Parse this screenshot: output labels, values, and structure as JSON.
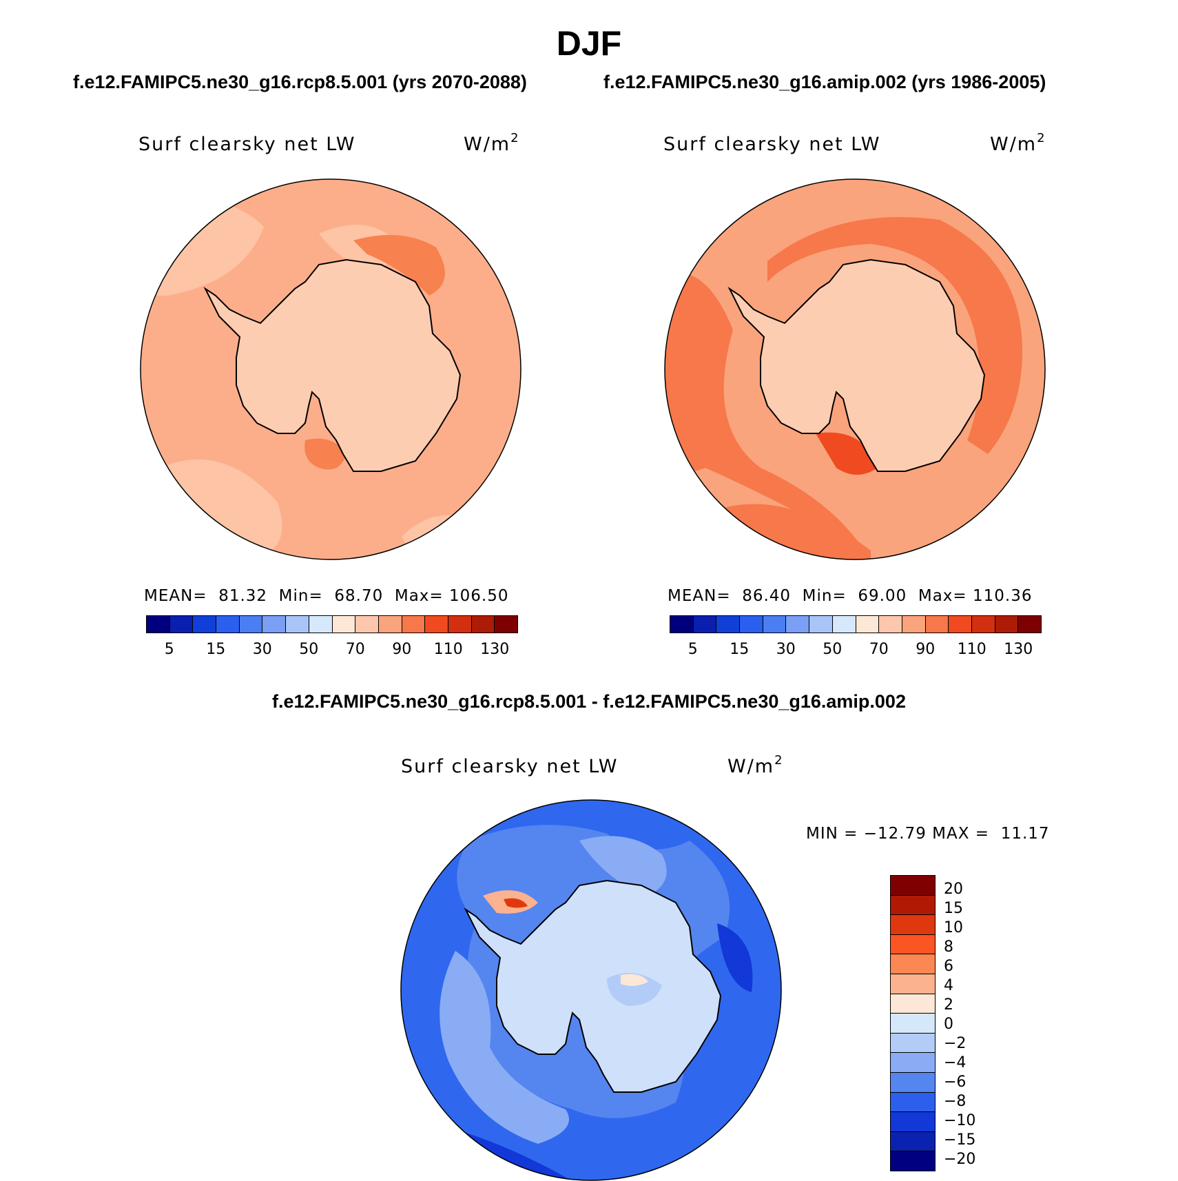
{
  "title": "DJF",
  "panels": [
    {
      "run_label": "f.e12.FAMIPC5.ne30_g16.rcp8.5.001 (yrs 2070-2088)",
      "field": "Surf clearsky net LW",
      "units_base": "W/m",
      "units_exp": "2",
      "stats": "MEAN=  81.32  Min=  68.70  Max= 106.50",
      "colorbar": {
        "colors": [
          "#00007f",
          "#0a1fb0",
          "#1040d8",
          "#2a5fef",
          "#4a7ef2",
          "#7a9ff4",
          "#a9c4f7",
          "#d6e8fb",
          "#fde8d8",
          "#fcc7ac",
          "#f9a47c",
          "#f7784a",
          "#f04a20",
          "#d23010",
          "#ad1c06",
          "#7f0000"
        ],
        "tick_labels": [
          "5",
          "15",
          "30",
          "50",
          "70",
          "90",
          "110",
          "130"
        ]
      },
      "map": {
        "ocean_color": "#fcae8a",
        "continent_color": "#fdcdb2",
        "accent_color": "#f7814f"
      }
    },
    {
      "run_label": "f.e12.FAMIPC5.ne30_g16.amip.002 (yrs 1986-2005)",
      "field": "Surf clearsky net LW",
      "units_base": "W/m",
      "units_exp": "2",
      "stats": "MEAN=  86.40  Min=  69.00  Max= 110.36",
      "colorbar": {
        "colors": [
          "#00007f",
          "#0a1fb0",
          "#1040d8",
          "#2a5fef",
          "#4a7ef2",
          "#7a9ff4",
          "#a9c4f7",
          "#d6e8fb",
          "#fde8d8",
          "#fcc7ac",
          "#f9a47c",
          "#f7784a",
          "#f04a20",
          "#d23010",
          "#ad1c06",
          "#7f0000"
        ],
        "tick_labels": [
          "5",
          "15",
          "30",
          "50",
          "70",
          "90",
          "110",
          "130"
        ]
      },
      "map": {
        "ocean_color": "#f9a47c",
        "continent_color": "#fdcdb2",
        "accent_color": "#f7784a"
      }
    }
  ],
  "difference": {
    "title": "f.e12.FAMIPC5.ne30_g16.rcp8.5.001 - f.e12.FAMIPC5.ne30_g16.amip.002",
    "field": "Surf clearsky net LW",
    "units_base": "W/m",
    "units_exp": "2",
    "stats": "MIN = −12.79 MAX =  11.17",
    "colorbar": {
      "colors": [
        "#7f0000",
        "#b01a05",
        "#e0380e",
        "#fc5524",
        "#fb8752",
        "#fbb28e",
        "#fde7d6",
        "#d5e7fb",
        "#b3ccf7",
        "#8aacf5",
        "#5585ef",
        "#2c60ec",
        "#1238d8",
        "#0a22b0",
        "#000080"
      ],
      "tick_labels": [
        "20",
        "15",
        "10",
        "8",
        "6",
        "4",
        "2",
        "0",
        "−2",
        "−4",
        "−6",
        "−8",
        "−10",
        "−15",
        "−20"
      ]
    },
    "map": {
      "ocean_color": "#2f68ee",
      "continent_color": "#cfe0fb",
      "accent_color": "#8fb0f5"
    }
  }
}
